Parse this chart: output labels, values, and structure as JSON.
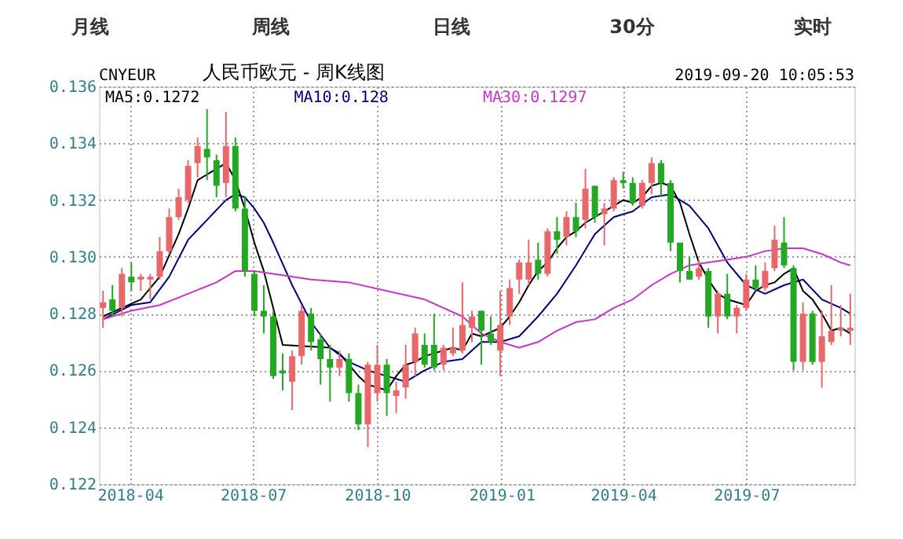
{
  "chart_data": {
    "type": "candlestick",
    "title": "人民币欧元 - 周K线图",
    "annotations": [
      "月线",
      "周线",
      "日线",
      "30分",
      "实时",
      "CNYEUR",
      "2019-09-20 10:05:53"
    ],
    "x": [
      "2018-03-12",
      "2018-03-19",
      "2018-03-26",
      "2018-04-02",
      "2018-04-09",
      "2018-04-16",
      "2018-04-23",
      "2018-04-30",
      "2018-05-07",
      "2018-05-14",
      "2018-05-21",
      "2018-05-28",
      "2018-06-04",
      "2018-06-11",
      "2018-06-18",
      "2018-06-25",
      "2018-07-02",
      "2018-07-09",
      "2018-07-16",
      "2018-07-23",
      "2018-07-30",
      "2018-08-06",
      "2018-08-13",
      "2018-08-20",
      "2018-08-27",
      "2018-09-03",
      "2018-09-10",
      "2018-09-17",
      "2018-09-24",
      "2018-10-01",
      "2018-10-08",
      "2018-10-15",
      "2018-10-22",
      "2018-10-29",
      "2018-11-05",
      "2018-11-12",
      "2018-11-19",
      "2018-11-26",
      "2018-12-03",
      "2018-12-10",
      "2018-12-17",
      "2018-12-24",
      "2018-12-31",
      "2019-01-07",
      "2019-01-14",
      "2019-01-21",
      "2019-01-28",
      "2019-02-04",
      "2019-02-11",
      "2019-02-18",
      "2019-02-25",
      "2019-03-04",
      "2019-03-11",
      "2019-03-18",
      "2019-03-25",
      "2019-04-01",
      "2019-04-08",
      "2019-04-15",
      "2019-04-22",
      "2019-04-29",
      "2019-05-06",
      "2019-05-13",
      "2019-05-20",
      "2019-05-27",
      "2019-06-03",
      "2019-06-10",
      "2019-06-17",
      "2019-06-24",
      "2019-07-01",
      "2019-07-08",
      "2019-07-15",
      "2019-07-22",
      "2019-07-29",
      "2019-08-05",
      "2019-08-12",
      "2019-08-19",
      "2019-08-26",
      "2019-09-02",
      "2019-09-09",
      "2019-09-16"
    ],
    "ohlc": [
      [
        0.1282,
        0.1288,
        0.1275,
        0.1284
      ],
      [
        0.1285,
        0.129,
        0.1279,
        0.1281
      ],
      [
        0.1282,
        0.1296,
        0.1279,
        0.1294
      ],
      [
        0.1293,
        0.1298,
        0.1288,
        0.1291
      ],
      [
        0.1292,
        0.1294,
        0.1288,
        0.1293
      ],
      [
        0.1292,
        0.1294,
        0.1285,
        0.1293
      ],
      [
        0.1293,
        0.1307,
        0.1292,
        0.1302
      ],
      [
        0.1302,
        0.1317,
        0.1301,
        0.1314
      ],
      [
        0.1314,
        0.1324,
        0.1313,
        0.1321
      ],
      [
        0.132,
        0.1334,
        0.1319,
        0.1332
      ],
      [
        0.1333,
        0.1342,
        0.1328,
        0.1339
      ],
      [
        0.1338,
        0.1352,
        0.1327,
        0.1335
      ],
      [
        0.1334,
        0.1336,
        0.1321,
        0.1325
      ],
      [
        0.1326,
        0.1351,
        0.1321,
        0.1339
      ],
      [
        0.1339,
        0.1342,
        0.1316,
        0.1317
      ],
      [
        0.1317,
        0.1321,
        0.1293,
        0.1295
      ],
      [
        0.1294,
        0.1295,
        0.1279,
        0.1281
      ],
      [
        0.1281,
        0.129,
        0.1273,
        0.1279
      ],
      [
        0.1279,
        0.1281,
        0.1257,
        0.1258
      ],
      [
        0.126,
        0.1266,
        0.1253,
        0.1259
      ],
      [
        0.1256,
        0.1267,
        0.1246,
        0.1265
      ],
      [
        0.1265,
        0.1283,
        0.1262,
        0.1281
      ],
      [
        0.128,
        0.1282,
        0.1267,
        0.127
      ],
      [
        0.1271,
        0.1273,
        0.1255,
        0.1264
      ],
      [
        0.1264,
        0.1269,
        0.1249,
        0.1261
      ],
      [
        0.1261,
        0.1267,
        0.1258,
        0.1264
      ],
      [
        0.1264,
        0.1266,
        0.1249,
        0.1252
      ],
      [
        0.1252,
        0.1255,
        0.1239,
        0.1241
      ],
      [
        0.1241,
        0.1263,
        0.1233,
        0.1262
      ],
      [
        0.1252,
        0.1269,
        0.1249,
        0.1262
      ],
      [
        0.1262,
        0.1264,
        0.1244,
        0.1252
      ],
      [
        0.1251,
        0.1256,
        0.1245,
        0.1253
      ],
      [
        0.1254,
        0.1269,
        0.125,
        0.1262
      ],
      [
        0.1263,
        0.1275,
        0.1258,
        0.1273
      ],
      [
        0.1269,
        0.1273,
        0.1261,
        0.1262
      ],
      [
        0.1269,
        0.128,
        0.126,
        0.1261
      ],
      [
        0.1262,
        0.1269,
        0.126,
        0.1268
      ],
      [
        0.1266,
        0.1275,
        0.1265,
        0.1268
      ],
      [
        0.1267,
        0.1291,
        0.1266,
        0.1276
      ],
      [
        0.1275,
        0.1281,
        0.127,
        0.1279
      ],
      [
        0.1281,
        0.1281,
        0.1262,
        0.1274
      ],
      [
        0.1273,
        0.1279,
        0.1269,
        0.127
      ],
      [
        0.1267,
        0.1288,
        0.1258,
        0.1276
      ],
      [
        0.1279,
        0.1292,
        0.1276,
        0.1289
      ],
      [
        0.1292,
        0.1299,
        0.1287,
        0.1298
      ],
      [
        0.1292,
        0.1306,
        0.129,
        0.1298
      ],
      [
        0.1299,
        0.1305,
        0.1292,
        0.1294
      ],
      [
        0.1294,
        0.131,
        0.1293,
        0.1309
      ],
      [
        0.1309,
        0.1314,
        0.1301,
        0.1306
      ],
      [
        0.1307,
        0.1316,
        0.1304,
        0.1314
      ],
      [
        0.1314,
        0.1319,
        0.1307,
        0.1309
      ],
      [
        0.1313,
        0.1331,
        0.131,
        0.1324
      ],
      [
        0.1325,
        0.1325,
        0.1312,
        0.1314
      ],
      [
        0.1315,
        0.1319,
        0.1304,
        0.1317
      ],
      [
        0.1317,
        0.1328,
        0.1316,
        0.1327
      ],
      [
        0.1327,
        0.133,
        0.1324,
        0.1326
      ],
      [
        0.1326,
        0.1328,
        0.1318,
        0.1319
      ],
      [
        0.1318,
        0.1327,
        0.1317,
        0.1326
      ],
      [
        0.1326,
        0.1335,
        0.1322,
        0.1333
      ],
      [
        0.1333,
        0.1334,
        0.1321,
        0.1326
      ],
      [
        0.1326,
        0.1327,
        0.1302,
        0.1305
      ],
      [
        0.1305,
        0.1305,
        0.1291,
        0.1295
      ],
      [
        0.1295,
        0.13,
        0.1292,
        0.1292
      ],
      [
        0.1293,
        0.1299,
        0.1292,
        0.1296
      ],
      [
        0.1295,
        0.1296,
        0.1275,
        0.1279
      ],
      [
        0.1279,
        0.1288,
        0.1273,
        0.1287
      ],
      [
        0.1287,
        0.1294,
        0.1278,
        0.1279
      ],
      [
        0.1279,
        0.1283,
        0.1273,
        0.1282
      ],
      [
        0.1282,
        0.1294,
        0.1281,
        0.1292
      ],
      [
        0.1292,
        0.1297,
        0.1288,
        0.1289
      ],
      [
        0.1289,
        0.1298,
        0.1288,
        0.1295
      ],
      [
        0.1296,
        0.1311,
        0.1295,
        0.1306
      ],
      [
        0.1305,
        0.1314,
        0.1296,
        0.1297
      ],
      [
        0.1296,
        0.1297,
        0.126,
        0.1263
      ],
      [
        0.1263,
        0.1284,
        0.126,
        0.128
      ],
      [
        0.128,
        0.1281,
        0.1262,
        0.1263
      ],
      [
        0.1263,
        0.1281,
        0.1254,
        0.1272
      ],
      [
        0.127,
        0.129,
        0.1269,
        0.1274
      ],
      [
        0.1274,
        0.1283,
        0.1272,
        0.1275
      ],
      [
        0.1274,
        0.1287,
        0.1269,
        0.1275
      ]
    ],
    "colors": [
      "#e8686a",
      "#22a822",
      "#e8686a",
      "#22a822",
      "#e8686a",
      "#e8686a",
      "#e8686a",
      "#e8686a",
      "#e8686a",
      "#e8686a",
      "#e8686a",
      "#22a822",
      "#22a822",
      "#e8686a",
      "#22a822",
      "#22a822",
      "#22a822",
      "#22a822",
      "#22a822",
      "#22a822",
      "#e8686a",
      "#e8686a",
      "#22a822",
      "#22a822",
      "#22a822",
      "#e8686a",
      "#22a822",
      "#22a822",
      "#e8686a",
      "#e8686a",
      "#22a822",
      "#e8686a",
      "#e8686a",
      "#e8686a",
      "#22a822",
      "#22a822",
      "#e8686a",
      "#e8686a",
      "#e8686a",
      "#e8686a",
      "#22a822",
      "#22a822",
      "#e8686a",
      "#e8686a",
      "#e8686a",
      "#e8686a",
      "#22a822",
      "#e8686a",
      "#22a822",
      "#e8686a",
      "#22a822",
      "#e8686a",
      "#22a822",
      "#e8686a",
      "#e8686a",
      "#22a822",
      "#22a822",
      "#e8686a",
      "#e8686a",
      "#22a822",
      "#22a822",
      "#22a822",
      "#22a822",
      "#e8686a",
      "#22a822",
      "#e8686a",
      "#22a822",
      "#e8686a",
      "#e8686a",
      "#22a822",
      "#e8686a",
      "#e8686a",
      "#22a822",
      "#22a822",
      "#e8686a",
      "#22a822",
      "#e8686a",
      "#e8686a",
      "#e8686a",
      "#e8686a"
    ],
    "series": [
      {
        "name": "MA5:0.1272",
        "color": "#000000",
        "type": "line",
        "x": [
          "2018-03-12",
          "2018-04-09",
          "2018-04-23",
          "2018-05-07",
          "2018-05-14",
          "2018-05-21",
          "2018-06-04",
          "2018-06-11",
          "2018-06-18",
          "2018-06-25",
          "2018-07-02",
          "2018-07-09",
          "2018-07-16",
          "2018-07-23",
          "2018-08-27",
          "2018-09-03",
          "2018-09-10",
          "2018-09-17",
          "2018-09-24",
          "2018-10-01",
          "2018-10-08",
          "2018-10-15",
          "2018-10-22",
          "2018-10-29",
          "2018-11-05",
          "2018-11-26",
          "2018-12-03",
          "2018-12-10",
          "2018-12-17",
          "2018-12-31",
          "2019-01-07",
          "2019-01-14",
          "2019-01-21",
          "2019-01-28",
          "2019-02-04",
          "2019-02-11",
          "2019-02-18",
          "2019-02-25",
          "2019-03-04",
          "2019-03-11",
          "2019-03-18",
          "2019-03-25",
          "2019-04-01",
          "2019-04-08",
          "2019-04-15",
          "2019-04-22",
          "2019-04-29",
          "2019-05-06",
          "2019-05-13",
          "2019-05-20",
          "2019-05-27",
          "2019-06-03",
          "2019-06-10",
          "2019-06-17",
          "2019-07-01",
          "2019-07-08",
          "2019-07-15",
          "2019-07-22",
          "2019-07-29",
          "2019-08-05",
          "2019-08-12",
          "2019-08-19",
          "2019-08-26",
          "2019-09-02",
          "2019-09-09",
          "2019-09-16"
        ],
        "values": [
          0.1279,
          0.1285,
          0.1293,
          0.1308,
          0.1317,
          0.1327,
          0.1331,
          0.1333,
          0.1327,
          0.1317,
          0.1305,
          0.1295,
          0.1282,
          0.1269,
          0.1268,
          0.1266,
          0.1262,
          0.1258,
          0.1255,
          0.1254,
          0.1253,
          0.1258,
          0.1262,
          0.1263,
          0.1265,
          0.1268,
          0.1267,
          0.1273,
          0.1272,
          0.1275,
          0.1279,
          0.1284,
          0.129,
          0.1295,
          0.1298,
          0.1303,
          0.1307,
          0.1309,
          0.1312,
          0.1314,
          0.1316,
          0.1318,
          0.132,
          0.1319,
          0.1321,
          0.1325,
          0.1326,
          0.1325,
          0.1319,
          0.1308,
          0.1298,
          0.1292,
          0.1287,
          0.1285,
          0.1283,
          0.1288,
          0.129,
          0.1291,
          0.1294,
          0.1296,
          0.1288,
          0.1285,
          0.128,
          0.1274,
          0.1275,
          0.1273
        ]
      },
      {
        "name": "MA10:0.128",
        "color": "#000080",
        "type": "line",
        "x": [
          "2018-03-12",
          "2018-04-02",
          "2018-04-16",
          "2018-04-30",
          "2018-05-14",
          "2018-05-28",
          "2018-06-11",
          "2018-06-18",
          "2018-06-25",
          "2018-07-02",
          "2018-07-09",
          "2018-07-16",
          "2018-07-30",
          "2018-08-13",
          "2018-08-27",
          "2018-09-10",
          "2018-09-24",
          "2018-10-08",
          "2018-10-22",
          "2018-11-05",
          "2018-11-19",
          "2018-12-03",
          "2018-12-17",
          "2018-12-31",
          "2019-01-14",
          "2019-01-28",
          "2019-02-11",
          "2019-02-25",
          "2019-03-11",
          "2019-03-25",
          "2019-04-08",
          "2019-04-22",
          "2019-05-06",
          "2019-05-20",
          "2019-06-03",
          "2019-06-17",
          "2019-07-01",
          "2019-07-15",
          "2019-07-29",
          "2019-08-12",
          "2019-08-26",
          "2019-09-09",
          "2019-09-16"
        ],
        "values": [
          0.1278,
          0.1283,
          0.1284,
          0.1293,
          0.1306,
          0.1313,
          0.132,
          0.1322,
          0.1321,
          0.1317,
          0.1312,
          0.1305,
          0.129,
          0.1277,
          0.1268,
          0.1263,
          0.126,
          0.1258,
          0.1256,
          0.126,
          0.1263,
          0.1264,
          0.127,
          0.127,
          0.1272,
          0.1279,
          0.1287,
          0.1297,
          0.1308,
          0.1314,
          0.1316,
          0.1321,
          0.1322,
          0.1318,
          0.131,
          0.1298,
          0.129,
          0.1287,
          0.129,
          0.1292,
          0.1285,
          0.1282,
          0.128
        ]
      },
      {
        "name": "MA30:0.1297",
        "color": "#cc33cc",
        "type": "line",
        "x": [
          "2018-03-12",
          "2018-04-02",
          "2018-04-23",
          "2018-05-14",
          "2018-06-04",
          "2018-06-18",
          "2018-07-02",
          "2018-07-16",
          "2018-08-13",
          "2018-09-10",
          "2018-10-08",
          "2018-11-05",
          "2018-12-03",
          "2018-12-17",
          "2018-12-31",
          "2019-01-14",
          "2019-01-28",
          "2019-02-11",
          "2019-02-25",
          "2019-03-11",
          "2019-03-25",
          "2019-04-08",
          "2019-04-22",
          "2019-05-06",
          "2019-05-20",
          "2019-06-03",
          "2019-06-17",
          "2019-07-01",
          "2019-07-15",
          "2019-07-29",
          "2019-08-12",
          "2019-08-26",
          "2019-09-09",
          "2019-09-16"
        ],
        "values": [
          0.1278,
          0.1281,
          0.1283,
          0.1287,
          0.1291,
          0.1295,
          0.1295,
          0.1294,
          0.1292,
          0.1291,
          0.1288,
          0.1285,
          0.1279,
          0.1273,
          0.127,
          0.1268,
          0.127,
          0.1274,
          0.1277,
          0.1278,
          0.1282,
          0.1285,
          0.129,
          0.1294,
          0.1297,
          0.1298,
          0.1299,
          0.13,
          0.1302,
          0.1303,
          0.1303,
          0.1301,
          0.1298,
          0.1297
        ]
      }
    ],
    "xlim": [
      "2018-03-09",
      "2019-09-19"
    ],
    "xticks": [
      "2018-04",
      "2018-07",
      "2018-10",
      "2019-01",
      "2019-04",
      "2019-07"
    ],
    "ylim": [
      0.122,
      0.136
    ],
    "yticks": [
      0.122,
      0.124,
      0.126,
      0.128,
      {
        "value": 0.13,
        "label": "0.130"
      },
      0.132,
      0.134,
      0.136
    ],
    "grid": true,
    "legend": "top"
  }
}
